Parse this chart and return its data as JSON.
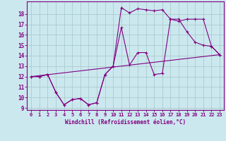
{
  "background_color": "#cce8ef",
  "line_color": "#800080",
  "grid_color": "#aacccc",
  "xlabel": "Windchill (Refroidissement éolien,°C)",
  "xlim": [
    -0.5,
    23.5
  ],
  "ylim": [
    8.8,
    19.2
  ],
  "yticks": [
    9,
    10,
    11,
    12,
    13,
    14,
    15,
    16,
    17,
    18
  ],
  "xticks": [
    0,
    1,
    2,
    3,
    4,
    5,
    6,
    7,
    8,
    9,
    10,
    11,
    12,
    13,
    14,
    15,
    16,
    17,
    18,
    19,
    20,
    21,
    22,
    23
  ],
  "series": [
    {
      "x": [
        0,
        1,
        2,
        3,
        4,
        5,
        6,
        7,
        8,
        9,
        10,
        11,
        12,
        13,
        14,
        15,
        16,
        17,
        18,
        19,
        20,
        21,
        22,
        23
      ],
      "y": [
        12,
        12,
        12.2,
        10.5,
        9.3,
        9.8,
        9.9,
        9.3,
        9.5,
        12.2,
        13.0,
        16.7,
        13.1,
        14.3,
        14.3,
        12.2,
        12.3,
        17.5,
        17.5,
        16.3,
        15.3,
        15.0,
        14.9,
        14.1
      ],
      "marker": true
    },
    {
      "x": [
        0,
        1,
        2,
        3,
        4,
        5,
        6,
        7,
        8,
        9,
        10,
        11,
        12,
        13,
        14,
        15,
        16,
        17,
        18,
        19,
        20,
        21,
        22,
        23
      ],
      "y": [
        12,
        12,
        12.2,
        10.5,
        9.3,
        9.8,
        9.9,
        9.3,
        9.5,
        12.2,
        13.0,
        18.6,
        18.1,
        18.5,
        18.4,
        18.3,
        18.4,
        17.5,
        17.3,
        17.5,
        17.5,
        17.5,
        14.9,
        14.1
      ],
      "marker": true
    },
    {
      "x": [
        0,
        23
      ],
      "y": [
        12,
        14.1
      ],
      "marker": false
    }
  ]
}
